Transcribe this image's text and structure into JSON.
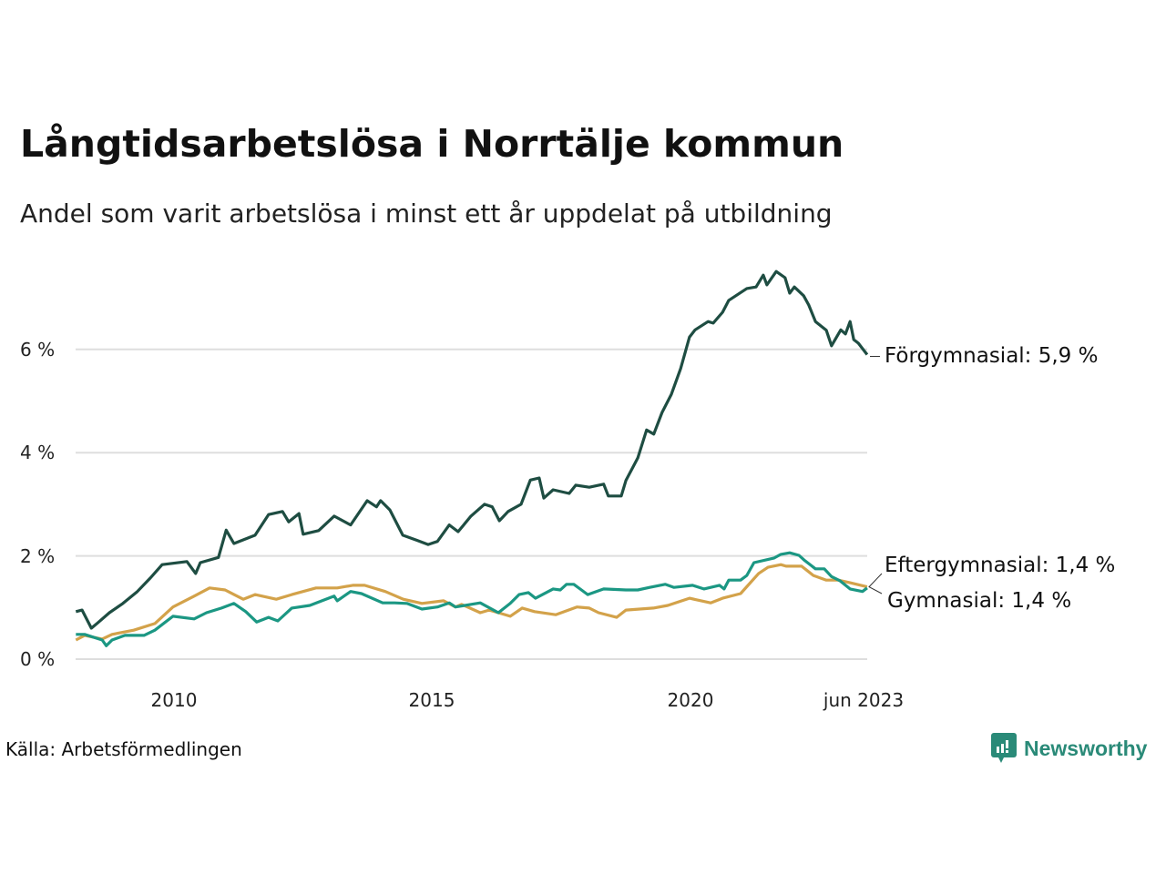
{
  "title": "Långtidsarbetslösa i Norrtälje kommun",
  "subtitle": "Andel som varit arbetslösa i minst ett år uppdelat på utbildning",
  "source": "Källa: Arbetsförmedlingen",
  "brand": "Newsworthy",
  "chart_data": {
    "type": "line",
    "title": "Långtidsarbetslösa i Norrtälje kommun",
    "xlabel": "",
    "ylabel": "",
    "ylim": [
      0,
      7.6
    ],
    "xlim": [
      2008.1,
      2023.42
    ],
    "yticks": [
      {
        "v": 0,
        "label": "0 %"
      },
      {
        "v": 2,
        "label": "2 %"
      },
      {
        "v": 4,
        "label": "4 %"
      },
      {
        "v": 6,
        "label": "6 %"
      }
    ],
    "xticks": [
      {
        "v": 2010,
        "label": "2010"
      },
      {
        "v": 2015,
        "label": "2015"
      },
      {
        "v": 2020,
        "label": "2020"
      },
      {
        "v": 2023.42,
        "label": "jun 2023"
      }
    ],
    "grid": true,
    "series": [
      {
        "name": "Förgymnasial",
        "end_label": "Förgymnasial: 5,9 %",
        "color": "#1e4d42",
        "x": [
          2008.1,
          2008.22,
          2008.4,
          2008.52,
          2008.75,
          2009.01,
          2009.28,
          2009.54,
          2009.77,
          2010.25,
          2010.42,
          2010.51,
          2010.86,
          2011.01,
          2011.16,
          2011.57,
          2011.83,
          2012.1,
          2012.22,
          2012.42,
          2012.5,
          2012.8,
          2013.1,
          2013.42,
          2013.74,
          2013.92,
          2014.0,
          2014.18,
          2014.43,
          2014.71,
          2014.92,
          2015.1,
          2015.33,
          2015.5,
          2015.75,
          2016.01,
          2016.16,
          2016.3,
          2016.47,
          2016.72,
          2016.9,
          2017.07,
          2017.16,
          2017.34,
          2017.65,
          2017.78,
          2018.04,
          2018.32,
          2018.41,
          2018.66,
          2018.75,
          2018.98,
          2019.15,
          2019.29,
          2019.45,
          2019.63,
          2019.81,
          2019.98,
          2020.09,
          2020.34,
          2020.44,
          2020.62,
          2020.74,
          2021.09,
          2021.27,
          2021.41,
          2021.48,
          2021.66,
          2021.83,
          2021.92,
          2022.01,
          2022.19,
          2022.29,
          2022.42,
          2022.63,
          2022.73,
          2022.91,
          2023.0,
          2023.09,
          2023.16,
          2023.25,
          2023.42
        ],
        "y": [
          0.92,
          0.95,
          0.6,
          0.7,
          0.9,
          1.08,
          1.3,
          1.57,
          1.83,
          1.89,
          1.66,
          1.87,
          1.97,
          2.5,
          2.24,
          2.4,
          2.8,
          2.86,
          2.66,
          2.82,
          2.42,
          2.49,
          2.77,
          2.6,
          3.07,
          2.95,
          3.07,
          2.89,
          2.4,
          2.3,
          2.22,
          2.28,
          2.6,
          2.47,
          2.77,
          3.0,
          2.95,
          2.68,
          2.86,
          3.0,
          3.47,
          3.51,
          3.12,
          3.28,
          3.21,
          3.37,
          3.33,
          3.39,
          3.16,
          3.16,
          3.46,
          3.9,
          4.44,
          4.36,
          4.78,
          5.13,
          5.63,
          6.24,
          6.38,
          6.54,
          6.51,
          6.72,
          6.95,
          7.18,
          7.21,
          7.44,
          7.25,
          7.51,
          7.39,
          7.09,
          7.21,
          7.04,
          6.86,
          6.54,
          6.37,
          6.07,
          6.38,
          6.3,
          6.54,
          6.19,
          6.12,
          5.9
        ]
      },
      {
        "name": "Eftergymnasial",
        "end_label": "Eftergymnasial: 1,4 %",
        "color": "#d3a24a",
        "x": [
          2008.1,
          2008.27,
          2008.61,
          2008.8,
          2009.22,
          2009.63,
          2009.98,
          2010.39,
          2010.69,
          2010.99,
          2011.34,
          2011.57,
          2011.98,
          2012.28,
          2012.75,
          2013.16,
          2013.46,
          2013.69,
          2014.09,
          2014.44,
          2014.8,
          2015.22,
          2015.45,
          2015.57,
          2015.93,
          2016.1,
          2016.28,
          2016.51,
          2016.74,
          2016.98,
          2017.39,
          2017.8,
          2018.04,
          2018.22,
          2018.57,
          2018.75,
          2019.28,
          2019.56,
          2019.98,
          2020.39,
          2020.62,
          2020.97,
          2021.32,
          2021.5,
          2021.75,
          2021.85,
          2022.15,
          2022.38,
          2022.63,
          2022.86,
          2023.09,
          2023.42
        ],
        "y": [
          0.37,
          0.46,
          0.39,
          0.48,
          0.56,
          0.69,
          1.01,
          1.22,
          1.38,
          1.34,
          1.16,
          1.25,
          1.16,
          1.25,
          1.38,
          1.38,
          1.43,
          1.43,
          1.31,
          1.16,
          1.08,
          1.13,
          1.01,
          1.06,
          0.9,
          0.95,
          0.9,
          0.83,
          0.99,
          0.92,
          0.86,
          1.01,
          0.99,
          0.9,
          0.81,
          0.95,
          0.99,
          1.04,
          1.18,
          1.09,
          1.18,
          1.27,
          1.66,
          1.78,
          1.83,
          1.8,
          1.8,
          1.62,
          1.53,
          1.53,
          1.48,
          1.4
        ]
      },
      {
        "name": "Gymnasial",
        "end_label": "Gymnasial: 1,4 %",
        "color": "#1b9783",
        "x": [
          2008.1,
          2008.27,
          2008.61,
          2008.69,
          2008.8,
          2009.05,
          2009.42,
          2009.63,
          2009.98,
          2010.39,
          2010.63,
          2010.92,
          2011.16,
          2011.39,
          2011.6,
          2011.83,
          2012.01,
          2012.28,
          2012.63,
          2013.1,
          2013.16,
          2013.42,
          2013.63,
          2014.04,
          2014.27,
          2014.51,
          2014.8,
          2015.1,
          2015.33,
          2015.45,
          2015.93,
          2016.28,
          2016.51,
          2016.68,
          2016.86,
          2017.0,
          2017.34,
          2017.48,
          2017.6,
          2017.74,
          2018.01,
          2018.32,
          2018.75,
          2018.98,
          2019.21,
          2019.51,
          2019.68,
          2020.04,
          2020.26,
          2020.56,
          2020.65,
          2020.74,
          2020.97,
          2021.09,
          2021.23,
          2021.62,
          2021.75,
          2021.92,
          2022.1,
          2022.2,
          2022.42,
          2022.59,
          2022.73,
          2022.89,
          2023.09,
          2023.33,
          2023.42
        ],
        "y": [
          0.48,
          0.48,
          0.37,
          0.26,
          0.37,
          0.46,
          0.46,
          0.56,
          0.83,
          0.78,
          0.9,
          0.99,
          1.08,
          0.92,
          0.72,
          0.81,
          0.74,
          0.99,
          1.04,
          1.22,
          1.13,
          1.31,
          1.27,
          1.09,
          1.09,
          1.08,
          0.97,
          1.01,
          1.09,
          1.01,
          1.09,
          0.9,
          1.08,
          1.25,
          1.29,
          1.18,
          1.36,
          1.34,
          1.45,
          1.45,
          1.25,
          1.36,
          1.34,
          1.34,
          1.39,
          1.45,
          1.39,
          1.43,
          1.36,
          1.43,
          1.36,
          1.53,
          1.53,
          1.62,
          1.87,
          1.96,
          2.03,
          2.06,
          2.01,
          1.92,
          1.75,
          1.75,
          1.6,
          1.52,
          1.36,
          1.31,
          1.38
        ]
      }
    ]
  }
}
